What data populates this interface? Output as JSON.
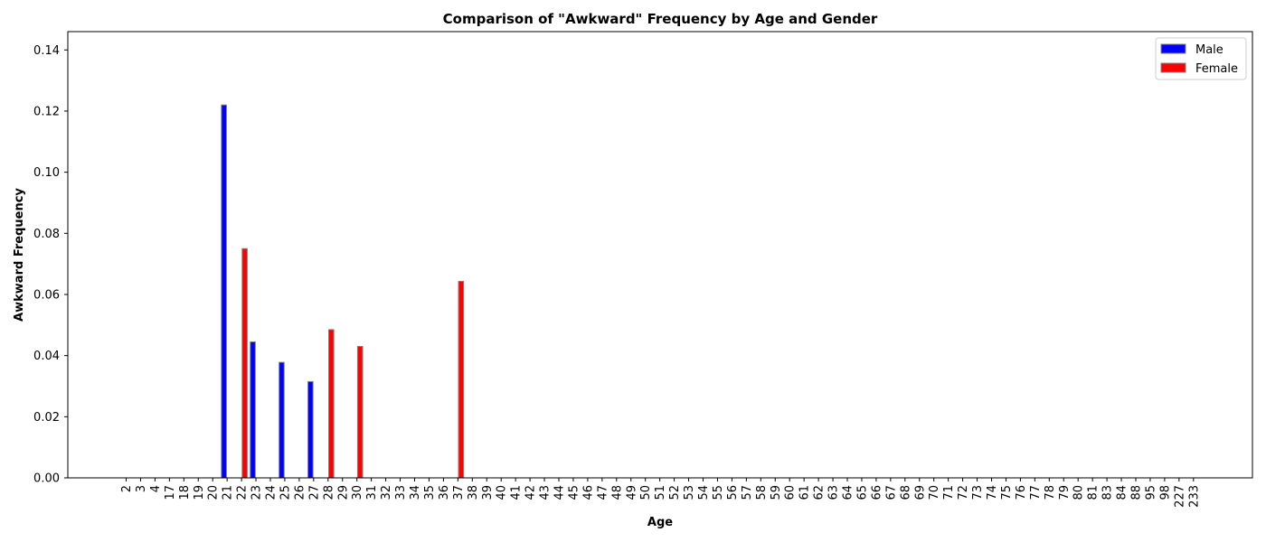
{
  "chart_data": {
    "type": "bar",
    "title": "Comparison of \"Awkward\" Frequency by Age and Gender",
    "xlabel": "Age",
    "ylabel": "Awkward Frequency",
    "ylim": [
      0,
      0.146
    ],
    "yticks": [
      "0.00",
      "0.02",
      "0.04",
      "0.06",
      "0.08",
      "0.10",
      "0.12",
      "0.14"
    ],
    "legend_position": "top-right",
    "grid": false,
    "categories": [
      "2",
      "3",
      "4",
      "17",
      "18",
      "19",
      "20",
      "21",
      "22",
      "23",
      "24",
      "25",
      "26",
      "27",
      "28",
      "29",
      "30",
      "31",
      "32",
      "33",
      "34",
      "35",
      "36",
      "37",
      "38",
      "39",
      "40",
      "41",
      "42",
      "43",
      "44",
      "45",
      "46",
      "47",
      "48",
      "49",
      "50",
      "51",
      "52",
      "53",
      "54",
      "55",
      "56",
      "57",
      "58",
      "59",
      "60",
      "61",
      "62",
      "63",
      "64",
      "65",
      "66",
      "67",
      "68",
      "69",
      "70",
      "71",
      "72",
      "73",
      "74",
      "75",
      "76",
      "77",
      "78",
      "79",
      "80",
      "81",
      "83",
      "84",
      "88",
      "95",
      "98",
      "227",
      "233"
    ],
    "series": [
      {
        "name": "Male",
        "color": "#0000ff",
        "values": [
          0,
          0,
          0,
          0,
          0,
          0,
          0,
          0.122,
          0,
          0.0445,
          0,
          0.0378,
          0,
          0.0315,
          0,
          0,
          0,
          0,
          0,
          0,
          0,
          0,
          0,
          0,
          0,
          0,
          0,
          0,
          0,
          0,
          0,
          0,
          0,
          0,
          0,
          0,
          0,
          0,
          0,
          0,
          0,
          0,
          0,
          0,
          0,
          0,
          0,
          0,
          0,
          0,
          0,
          0,
          0,
          0,
          0,
          0,
          0,
          0,
          0,
          0,
          0,
          0,
          0,
          0,
          0,
          0,
          0,
          0,
          0,
          0,
          0,
          0,
          0,
          0,
          0
        ]
      },
      {
        "name": "Female",
        "color": "#ff0000",
        "values": [
          0,
          0,
          0,
          0,
          0,
          0,
          0,
          0,
          0.075,
          0,
          0,
          0,
          0,
          0,
          0.0485,
          0,
          0.043,
          0,
          0,
          0,
          0,
          0,
          0,
          0.0643,
          0,
          0,
          0,
          0,
          0,
          0,
          0,
          0,
          0,
          0,
          0,
          0,
          0,
          0,
          0,
          0,
          0,
          0,
          0,
          0,
          0,
          0,
          0,
          0,
          0,
          0,
          0,
          0,
          0,
          0,
          0,
          0,
          0,
          0,
          0,
          0,
          0,
          0,
          0,
          0,
          0,
          0,
          0,
          0,
          0,
          0,
          0,
          0,
          0,
          0,
          0
        ]
      }
    ]
  }
}
